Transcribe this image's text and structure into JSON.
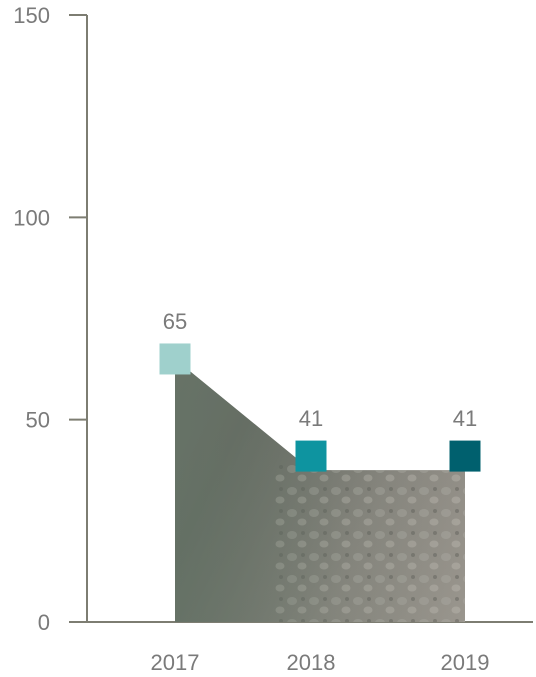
{
  "chart_data": {
    "type": "area",
    "categories": [
      "2017",
      "2018",
      "2019"
    ],
    "values": [
      65,
      41,
      41
    ],
    "ylim": [
      0,
      150
    ],
    "yticks": [
      0,
      50,
      100,
      150
    ],
    "grid": false,
    "legend": "none",
    "colors": {
      "axis": "#7d7d72",
      "text": "#7a7a7a",
      "markers": [
        "#9fd0cc",
        "#0e94a0",
        "#00606e"
      ],
      "fill_dark": "#5f615c",
      "fill_light": "#8f8c86",
      "fill_green": "#6d7a6e"
    }
  }
}
